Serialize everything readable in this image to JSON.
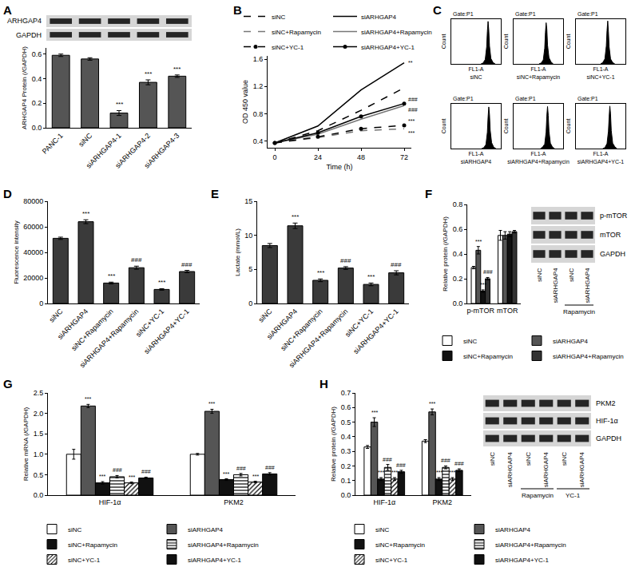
{
  "chart_data": [
    {
      "type": "bar",
      "title": "A",
      "y_label": "ARHGAP4 Protein (/GAPDH)",
      "categories": [
        "PANC-1",
        "siNC",
        "siARHGAP4-1",
        "siARHGAP4-2",
        "siARHGAP4-3"
      ],
      "values": [
        0.59,
        0.56,
        0.12,
        0.37,
        0.42
      ],
      "errors": [
        0.01,
        0.01,
        0.02,
        0.02,
        0.01
      ],
      "significance": [
        null,
        null,
        "***",
        "***",
        "***"
      ],
      "color": "#555555",
      "ylim": [
        0,
        0.65
      ],
      "yticks": [
        {
          "value": 0,
          "label": "0.0"
        },
        0.2,
        0.4,
        0.6
      ],
      "blot": {
        "bands": [
          "ARHGAP4",
          "GAPDH"
        ]
      }
    },
    {
      "type": "line",
      "title": "B",
      "x_label": "Time (h)",
      "y_label": "OD 450 value",
      "x": [
        0,
        24,
        48,
        72
      ],
      "xlim": [
        -4,
        76
      ],
      "xticks": [
        0,
        24,
        48,
        72
      ],
      "ylim": [
        0.3,
        1.65
      ],
      "yticks": [
        0.4,
        0.8,
        1.2,
        1.6
      ],
      "legend": "top-left",
      "series": [
        {
          "name": "siNC",
          "color": "#000000",
          "line_style": "dash",
          "marker": "none",
          "values": [
            0.37,
            0.55,
            0.85,
            1.18
          ]
        },
        {
          "name": "siARHGAP4",
          "color": "#000000",
          "line_style": "solid",
          "marker": "none",
          "values": [
            0.37,
            0.62,
            1.15,
            1.55
          ],
          "significance": "**"
        },
        {
          "name": "siNC+Rapamycin",
          "color": "#777777",
          "line_style": "dash",
          "marker": "none",
          "values": [
            0.37,
            0.45,
            0.55,
            0.58
          ],
          "significance": "***"
        },
        {
          "name": "siARHGAP4+Rapamycin",
          "color": "#777777",
          "line_style": "solid",
          "marker": "none",
          "values": [
            0.37,
            0.5,
            0.72,
            0.92
          ],
          "significance": "###"
        },
        {
          "name": "siNC+YC-1",
          "color": "#000000",
          "line_style": "dash",
          "marker": "circle",
          "values": [
            0.37,
            0.46,
            0.58,
            0.63
          ],
          "significance": "***"
        },
        {
          "name": "siARHGAP4+YC-1",
          "color": "#000000",
          "line_style": "solid",
          "marker": "circle",
          "values": [
            0.37,
            0.52,
            0.76,
            0.95
          ],
          "significance": "###"
        }
      ]
    },
    {
      "type": "area",
      "title": "C",
      "tick_labels": false,
      "xlim": [
        0,
        7
      ],
      "ylim": [
        0,
        100
      ],
      "color": "#000000",
      "panels": [
        {
          "title": "Gate:P1",
          "x_label": "FL1-A",
          "sample": "siNC",
          "y_label": "Count",
          "x": [
            4.2,
            4.5,
            4.8,
            5.0,
            5.1,
            5.2,
            5.3,
            5.4,
            5.6,
            5.9,
            6.2
          ],
          "values": [
            0,
            2,
            10,
            38,
            72,
            95,
            75,
            40,
            12,
            3,
            0
          ]
        },
        {
          "title": "Gate:P1",
          "x_label": "FL1-A",
          "sample": "siNC+Rapamycin",
          "y_label": "Count",
          "x": [
            3.6,
            3.9,
            4.2,
            4.4,
            4.5,
            4.6,
            4.7,
            4.8,
            5.0,
            5.3,
            5.6
          ],
          "values": [
            0,
            2,
            9,
            35,
            70,
            92,
            78,
            42,
            14,
            4,
            0
          ]
        },
        {
          "title": "Gate:P1",
          "x_label": "FL1-A",
          "sample": "siNC+YC-1",
          "y_label": "Count",
          "x": [
            3.5,
            3.8,
            4.1,
            4.3,
            4.4,
            4.5,
            4.6,
            4.7,
            4.9,
            5.2,
            5.5
          ],
          "values": [
            0,
            3,
            11,
            40,
            74,
            96,
            72,
            38,
            11,
            3,
            0
          ]
        },
        {
          "title": "Gate:P1",
          "x_label": "FL1-A",
          "sample": "siARHGAP4",
          "y_label": "Count",
          "x": [
            4.3,
            4.6,
            4.9,
            5.1,
            5.2,
            5.3,
            5.4,
            5.5,
            5.7,
            6.0,
            6.3
          ],
          "values": [
            0,
            2,
            9,
            36,
            70,
            93,
            76,
            41,
            13,
            3,
            0
          ]
        },
        {
          "title": "Gate:P1",
          "x_label": "FL1-A",
          "sample": "siARHGAP4+Rapamycin",
          "y_label": "Count",
          "x": [
            3.8,
            4.1,
            4.4,
            4.6,
            4.7,
            4.8,
            4.9,
            5.0,
            5.2,
            5.5,
            5.8
          ],
          "values": [
            0,
            3,
            10,
            37,
            73,
            94,
            74,
            39,
            12,
            3,
            0
          ]
        },
        {
          "title": "Gate:P1",
          "x_label": "FL1-A",
          "sample": "siARHGAP4+YC-1",
          "y_label": "Count",
          "x": [
            3.8,
            4.1,
            4.4,
            4.6,
            4.7,
            4.8,
            4.9,
            5.0,
            5.2,
            5.5,
            5.8
          ],
          "values": [
            0,
            2,
            11,
            39,
            71,
            95,
            77,
            40,
            12,
            4,
            0
          ]
        }
      ]
    },
    {
      "type": "bar",
      "title": "D",
      "y_label": "Fluorescence intensity",
      "categories": [
        "siNC",
        "siARHGAP4",
        "siNC+Rapamycin",
        "siARHGAP4+Rapamycin",
        "siNC+YC-1",
        "siARHGAP4+YC-1"
      ],
      "values": [
        51000,
        64000,
        16000,
        28000,
        11000,
        25000
      ],
      "errors": [
        900,
        1500,
        700,
        1200,
        600,
        900
      ],
      "significance": [
        null,
        "***",
        "***",
        "###",
        "***",
        "###"
      ],
      "color": "#3a3a3a",
      "ylim": [
        0,
        80000
      ],
      "yticks": [
        0,
        20000,
        40000,
        60000,
        80000
      ]
    },
    {
      "type": "bar",
      "title": "E",
      "y_label": "Lactate (mmol/L)",
      "categories": [
        "siNC",
        "siARHGAP4",
        "siNC+Rapamycin",
        "siARHGAP4+Rapamycin",
        "siNC+YC-1",
        "siARHGAP4+YC-1"
      ],
      "values": [
        8.5,
        11.4,
        3.4,
        5.2,
        2.8,
        4.5
      ],
      "errors": [
        0.3,
        0.4,
        0.2,
        0.2,
        0.2,
        0.3
      ],
      "significance": [
        null,
        "***",
        "***",
        "###",
        "***",
        "###"
      ],
      "color": "#3a3a3a",
      "ylim": [
        0,
        15
      ],
      "yticks": [
        0,
        5,
        10,
        15
      ]
    },
    {
      "type": "bar",
      "title": "F",
      "y_label": "Relative protein (/GAPDH)",
      "categories": [
        "p-mTOR",
        "mTOR"
      ],
      "ylim": [
        0,
        0.8
      ],
      "yticks": [
        {
          "value": 0,
          "label": "0.0"
        },
        0.2,
        0.4,
        0.6,
        0.8
      ],
      "legend": "bottom",
      "series": [
        {
          "name": "siNC",
          "color": "#ffffff",
          "marker": "solid",
          "values": [
            0.29,
            0.55
          ],
          "errors": [
            0.01,
            0.04
          ],
          "significance": [
            null,
            null
          ]
        },
        {
          "name": "siARHGAP4",
          "color": "#555555",
          "marker": "solid",
          "values": [
            0.43,
            0.55
          ],
          "errors": [
            0.03,
            0.03
          ],
          "significance": [
            "***",
            null
          ]
        },
        {
          "name": "siNC+Rapamycin",
          "color": "#111111",
          "marker": "solid",
          "values": [
            0.1,
            0.56
          ],
          "errors": [
            0.01,
            0.02
          ],
          "significance": [
            "***",
            null
          ]
        },
        {
          "name": "siARHGAP4+Rapamycin",
          "color": "#333333",
          "marker": "solid",
          "values": [
            0.2,
            0.58
          ],
          "errors": [
            0.01,
            0.01
          ],
          "significance": [
            "###",
            null
          ]
        }
      ],
      "blot": {
        "bands": [
          "p-mTOR",
          "mTOR",
          "GAPDH"
        ],
        "lanes": [
          "siNC",
          "siARHGAP4",
          "siNC",
          "siARHGAP4"
        ],
        "groups": [
          {
            "label": "Rapamycin",
            "lanes": [
              2,
              3
            ]
          }
        ]
      }
    },
    {
      "type": "bar",
      "title": "G",
      "y_label": "Relative mRNA (/GAPDH)",
      "categories": [
        "HIF-1α",
        "PKM2"
      ],
      "ylim": [
        0,
        2.5
      ],
      "yticks": [
        {
          "value": 0,
          "label": "0.0"
        },
        0.5,
        {
          "value": 1,
          "label": "1.0"
        },
        1.5,
        {
          "value": 2,
          "label": "2.0"
        },
        2.5
      ],
      "legend": "bottom",
      "series": [
        {
          "name": "siNC",
          "color": "#ffffff",
          "marker": "solid",
          "values": [
            1.0,
            1.0
          ],
          "errors": [
            0.12,
            0.02
          ],
          "significance": [
            null,
            null
          ]
        },
        {
          "name": "siARHGAP4",
          "color": "#555555",
          "marker": "solid",
          "values": [
            2.18,
            2.05
          ],
          "errors": [
            0.04,
            0.05
          ],
          "significance": [
            "***",
            "***"
          ]
        },
        {
          "name": "siNC+Rapamycin",
          "color": "#111111",
          "marker": "solid",
          "values": [
            0.3,
            0.38
          ],
          "errors": [
            0.03,
            0.02
          ],
          "significance": [
            "***",
            "***"
          ]
        },
        {
          "name": "siARHGAP4+Rapamycin",
          "color": "#ffffff",
          "marker": "hlines",
          "values": [
            0.45,
            0.5
          ],
          "errors": [
            0.03,
            0.03
          ],
          "significance": [
            "###",
            "###"
          ]
        },
        {
          "name": "siNC+YC-1",
          "color": "#ffffff",
          "marker": "hatch",
          "values": [
            0.3,
            0.32
          ],
          "errors": [
            0.02,
            0.02
          ],
          "significance": [
            "***",
            "***"
          ]
        },
        {
          "name": "siARHGAP4+YC-1",
          "color": "#111111",
          "marker": "solid",
          "values": [
            0.42,
            0.52
          ],
          "errors": [
            0.02,
            0.03
          ],
          "significance": [
            "###",
            "###"
          ]
        }
      ]
    },
    {
      "type": "bar",
      "title": "H",
      "y_label": "Relative protein (/GAPDH)",
      "categories": [
        "HIF-1α",
        "PKM2"
      ],
      "ylim": [
        0,
        0.7
      ],
      "yticks": [
        {
          "value": 0,
          "label": "0.0"
        },
        0.1,
        0.2,
        0.3,
        0.4,
        0.5,
        0.6,
        0.7
      ],
      "legend": "bottom",
      "series": [
        {
          "name": "siNC",
          "color": "#ffffff",
          "marker": "solid",
          "values": [
            0.33,
            0.37
          ],
          "errors": [
            0.01,
            0.01
          ],
          "significance": [
            null,
            null
          ]
        },
        {
          "name": "siARHGAP4",
          "color": "#555555",
          "marker": "solid",
          "values": [
            0.5,
            0.57
          ],
          "errors": [
            0.03,
            0.02
          ],
          "significance": [
            "***",
            "***"
          ]
        },
        {
          "name": "siNC+Rapamycin",
          "color": "#111111",
          "marker": "solid",
          "values": [
            0.11,
            0.11
          ],
          "errors": [
            0.01,
            0.01
          ],
          "significance": [
            "***",
            "***"
          ]
        },
        {
          "name": "siARHGAP4+Rapamycin",
          "color": "#ffffff",
          "marker": "hlines",
          "values": [
            0.19,
            0.19
          ],
          "errors": [
            0.02,
            0.01
          ],
          "significance": [
            "###",
            "###"
          ]
        },
        {
          "name": "siNC+YC-1",
          "color": "#ffffff",
          "marker": "hatch",
          "values": [
            0.11,
            0.11
          ],
          "errors": [
            0.01,
            0.01
          ],
          "significance": [
            "***",
            "***"
          ]
        },
        {
          "name": "siARHGAP4+YC-1",
          "color": "#111111",
          "marker": "solid",
          "values": [
            0.16,
            0.17
          ],
          "errors": [
            0.01,
            0.01
          ],
          "significance": [
            "###",
            "###"
          ]
        }
      ],
      "blot": {
        "bands": [
          "PKM2",
          "HIF-1α",
          "GAPDH"
        ],
        "lanes": [
          "siNC",
          "siARHGAP4",
          "siNC",
          "siARHGAP4",
          "siNC",
          "siARHGAP4"
        ],
        "groups": [
          {
            "label": "Rapamycin",
            "lanes": [
              2,
              3
            ]
          },
          {
            "label": "YC-1",
            "lanes": [
              4,
              5
            ]
          }
        ]
      }
    }
  ]
}
